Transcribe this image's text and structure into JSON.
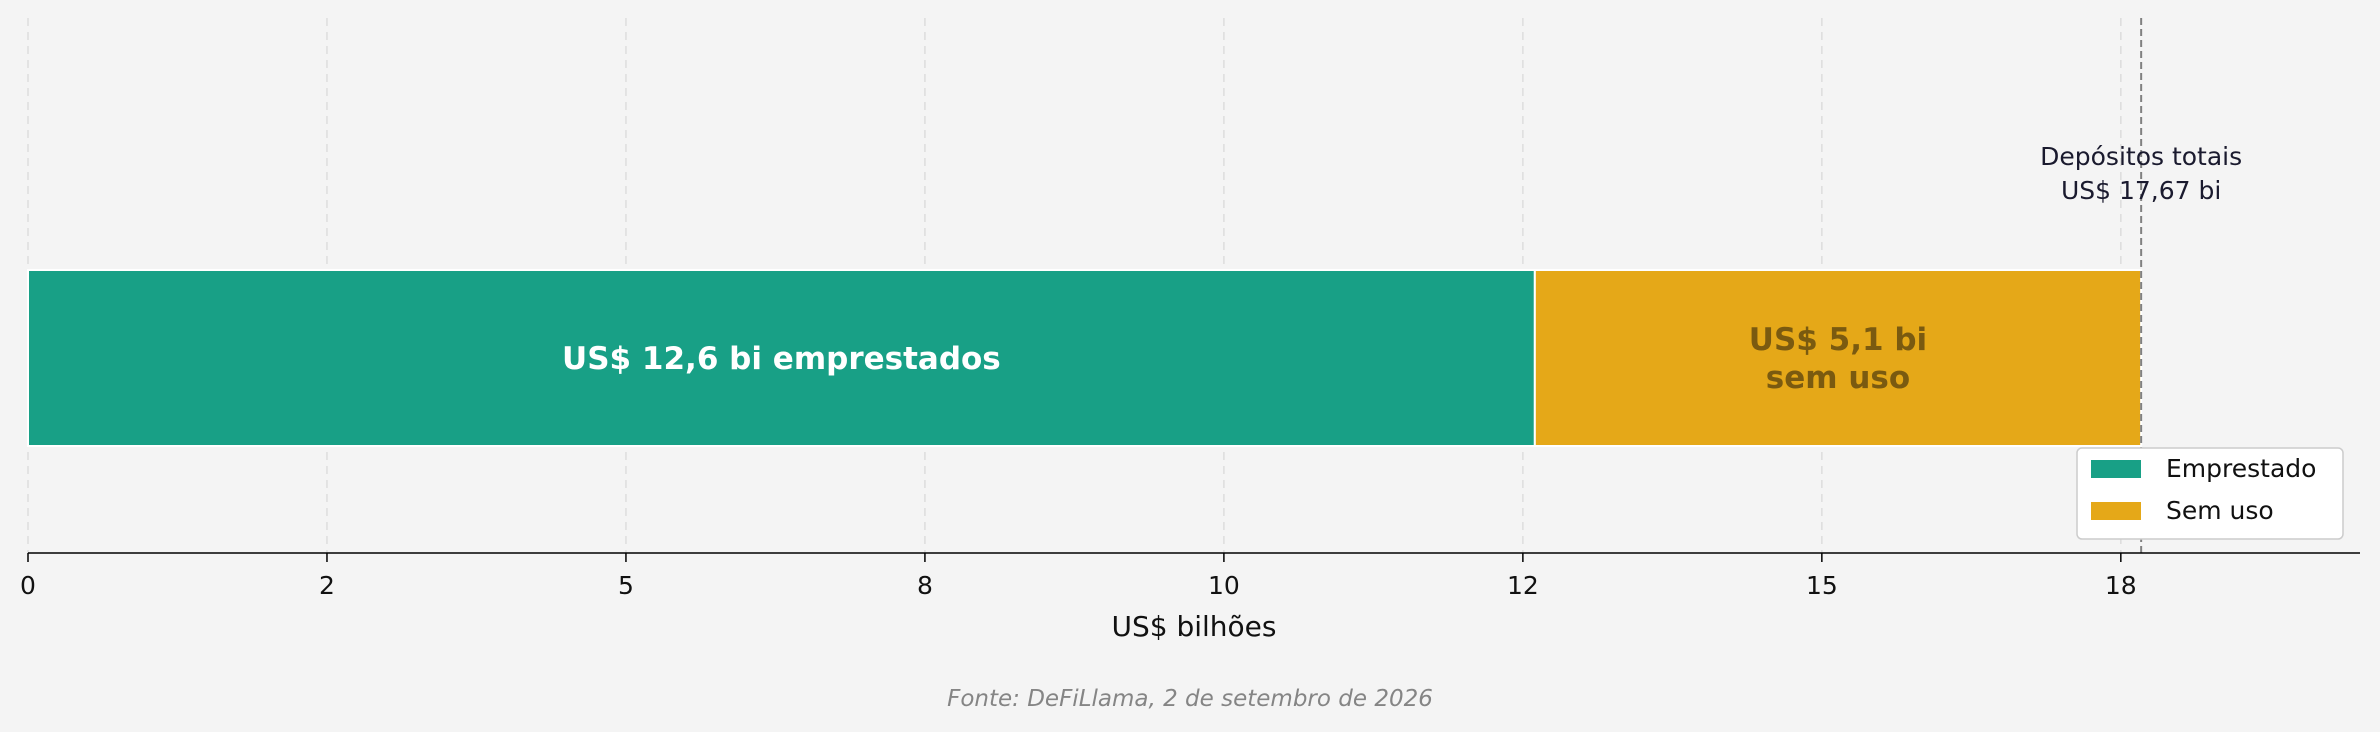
{
  "chart_data": {
    "type": "bar",
    "orientation": "horizontal",
    "stacked": true,
    "xlabel": "US$ bilhões",
    "ylabel": "",
    "xlim": [
      0,
      19.5
    ],
    "grid": true,
    "legend_position": "lower-right",
    "x_ticks": [
      {
        "value": 0,
        "label": "0"
      },
      {
        "value": 2.5,
        "label": "2"
      },
      {
        "value": 5,
        "label": "5"
      },
      {
        "value": 7.5,
        "label": "8"
      },
      {
        "value": 10,
        "label": "10"
      },
      {
        "value": 12.5,
        "label": "12"
      },
      {
        "value": 15,
        "label": "15"
      },
      {
        "value": 17.5,
        "label": "18"
      }
    ],
    "series": [
      {
        "name": "Emprestado",
        "value": 12.6,
        "color": "#18a086",
        "label_lines": [
          "US$ 12,6 bi emprestados"
        ],
        "label_color": "#ffffff"
      },
      {
        "name": "Sem uso",
        "value": 5.07,
        "color": "#e5a818",
        "label_lines": [
          "US$ 5,1 bi",
          "sem uso"
        ],
        "label_color": "#7a5a10"
      }
    ],
    "total": {
      "value": 17.67,
      "label_lines": [
        "Depósitos totais",
        "US$ 17,67 bi"
      ]
    },
    "source": "Fonte: DeFiLlama, 2 de setembro de 2026"
  }
}
